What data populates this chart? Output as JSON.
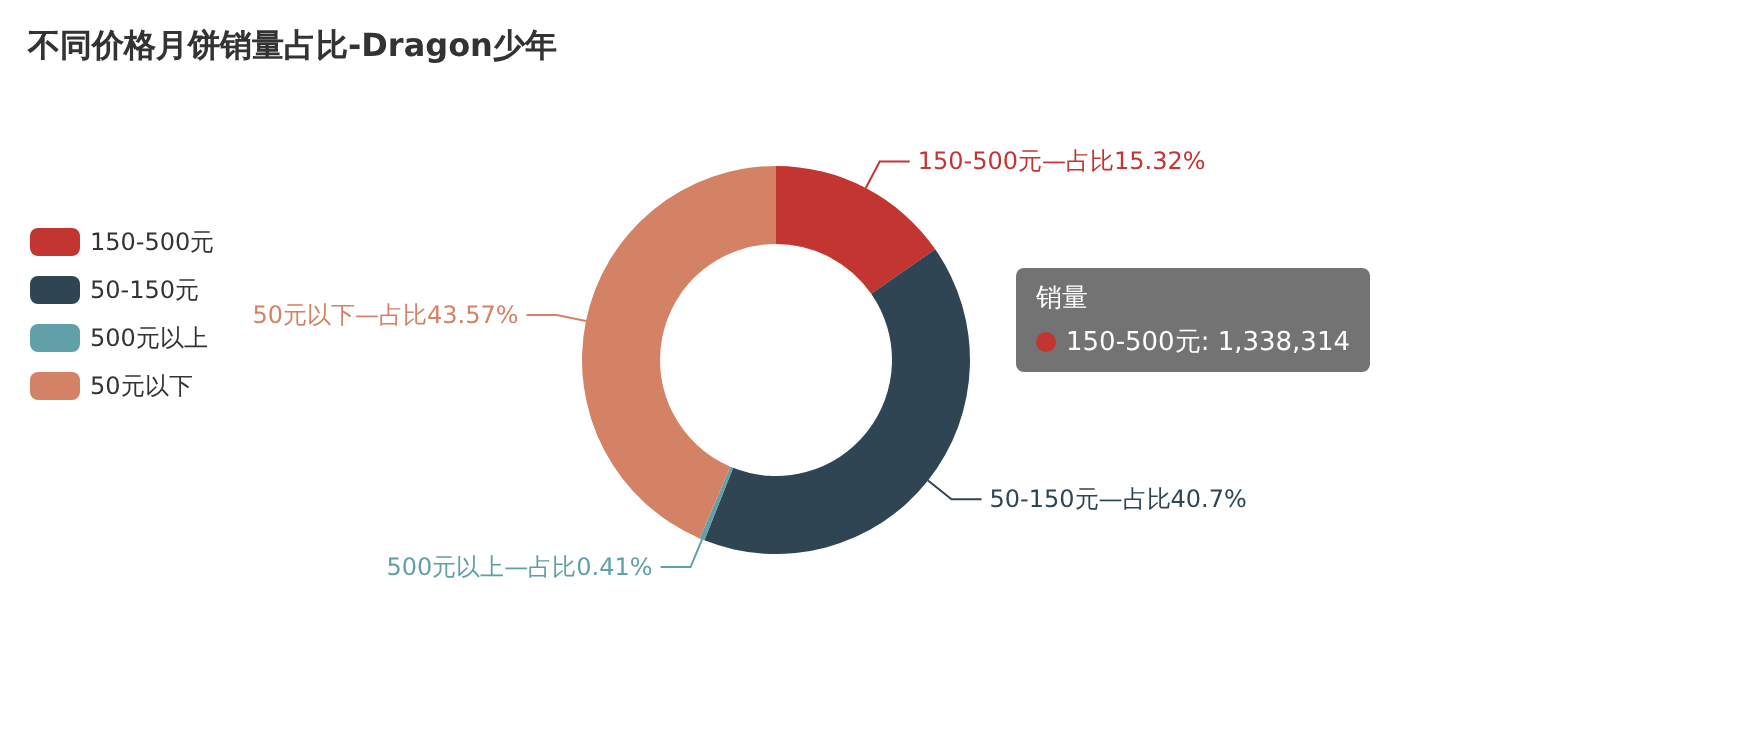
{
  "chart_data": {
    "type": "donut",
    "title": "不同价格月饼销量占比-Dragon少年",
    "categories": [
      "150-500元",
      "50-150元",
      "500元以上",
      "50元以下"
    ],
    "values": [
      15.32,
      40.7,
      0.41,
      43.57
    ],
    "colors": [
      "#c23531",
      "#2f4554",
      "#61a0a8",
      "#d48265"
    ],
    "value_labels": [
      "150-500元—占比15.32%",
      "50-150元—占比40.7%",
      "500元以上—占比0.41%",
      "50元以下—占比43.57%"
    ],
    "legend": "left",
    "annotations": [
      "销量",
      "150-500元: 1,338,314"
    ]
  }
}
